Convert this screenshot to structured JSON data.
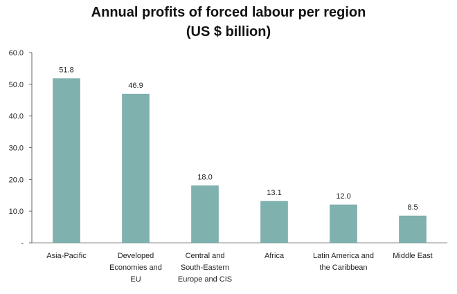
{
  "chart_data": {
    "type": "bar",
    "title_line1": "Annual profits of forced labour per region",
    "title_line2": "(US $ billion)",
    "categories": [
      [
        "Asia-Pacific"
      ],
      [
        "Developed",
        "Economies and",
        "EU"
      ],
      [
        "Central and",
        "South-Eastern",
        "Europe and CIS"
      ],
      [
        "Africa"
      ],
      [
        "Latin America and",
        "the Caribbean"
      ],
      [
        "Middle East"
      ]
    ],
    "values": [
      51.8,
      46.9,
      18.0,
      13.1,
      12.0,
      8.5
    ],
    "value_labels": [
      "51.8",
      "46.9",
      "18.0",
      "13.1",
      "12.0",
      "8.5"
    ],
    "ylim": [
      0,
      60
    ],
    "yticks": [
      0,
      10,
      20,
      30,
      40,
      50,
      60
    ],
    "ytick_labels": [
      "-",
      "10.0",
      "20.0",
      "30.0",
      "40.0",
      "50.0",
      "60.0"
    ],
    "xlabel": "",
    "ylabel": "",
    "grid": false,
    "legend": "none",
    "bar_color": "#7fb2ae",
    "bar_edge_color": "#6a9e9a"
  }
}
